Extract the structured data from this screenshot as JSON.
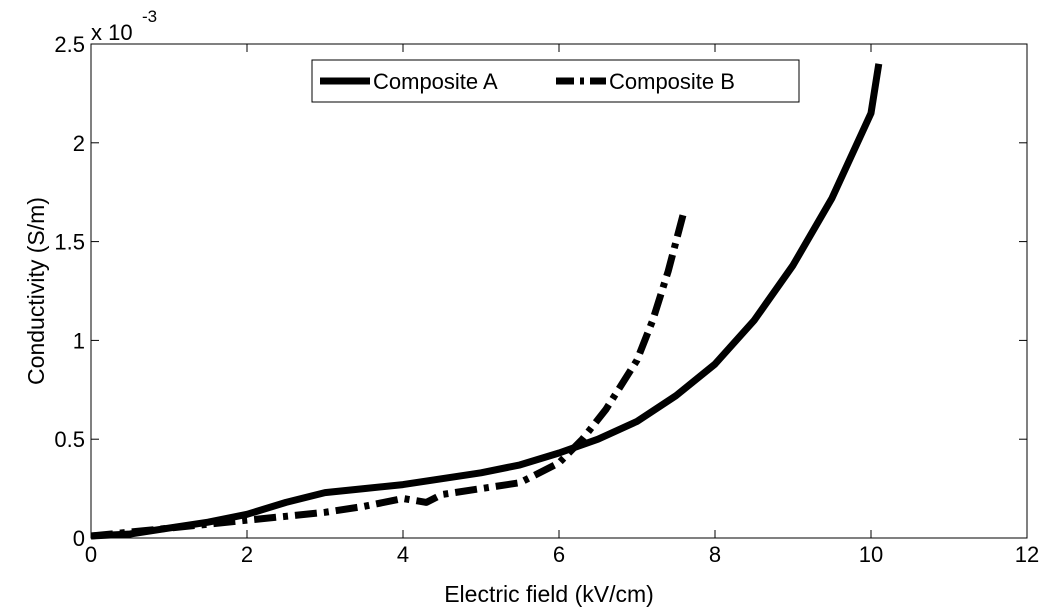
{
  "chart_data": {
    "type": "line",
    "title": "",
    "xlabel": "Electric field (kV/cm)",
    "ylabel": "Conductivity (S/m)",
    "y_multiplier_label": "x 10",
    "y_multiplier_exponent": "-3",
    "xlim": [
      0,
      12
    ],
    "ylim": [
      0,
      2.5
    ],
    "x_ticks": [
      0,
      2,
      4,
      6,
      8,
      10,
      12
    ],
    "x_tick_labels": [
      "0",
      "2",
      "4",
      "6",
      "8",
      "10",
      "12"
    ],
    "y_ticks": [
      0,
      0.5,
      1,
      1.5,
      2,
      2.5
    ],
    "y_tick_labels": [
      "0",
      "0.5",
      "1",
      "1.5",
      "2",
      "2.5"
    ],
    "grid": false,
    "legend_position": "top-center",
    "series": [
      {
        "name": "Composite A",
        "style": "solid",
        "color": "#000000",
        "x": [
          0,
          0.5,
          1,
          1.5,
          2,
          2.5,
          3,
          3.5,
          4,
          4.5,
          5,
          5.5,
          6,
          6.5,
          7,
          7.5,
          8,
          8.5,
          9,
          9.5,
          10,
          10.1
        ],
        "y": [
          0.01,
          0.02,
          0.05,
          0.08,
          0.12,
          0.18,
          0.23,
          0.25,
          0.27,
          0.3,
          0.33,
          0.37,
          0.43,
          0.5,
          0.59,
          0.72,
          0.88,
          1.1,
          1.38,
          1.72,
          2.15,
          2.4
        ]
      },
      {
        "name": "Composite B",
        "style": "dashdot",
        "color": "#000000",
        "x": [
          0,
          0.5,
          1,
          1.5,
          2,
          2.5,
          3,
          3.5,
          4,
          4.3,
          4.5,
          5,
          5.5,
          6,
          6.3,
          6.6,
          7,
          7.2,
          7.4,
          7.6
        ],
        "y": [
          0.01,
          0.03,
          0.05,
          0.07,
          0.09,
          0.11,
          0.13,
          0.16,
          0.2,
          0.18,
          0.22,
          0.25,
          0.28,
          0.38,
          0.5,
          0.65,
          0.9,
          1.1,
          1.35,
          1.65
        ]
      }
    ]
  }
}
